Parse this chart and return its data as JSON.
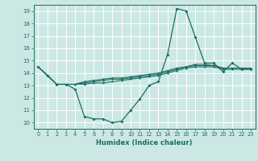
{
  "title": "",
  "xlabel": "Humidex (Indice chaleur)",
  "ylabel": "",
  "background_color": "#cce8e4",
  "grid_color": "#ffffff",
  "line_color": "#1a6e64",
  "xlim": [
    -0.5,
    23.5
  ],
  "ylim": [
    9.5,
    19.5
  ],
  "xticks": [
    0,
    1,
    2,
    3,
    4,
    5,
    6,
    7,
    8,
    9,
    10,
    11,
    12,
    13,
    14,
    15,
    16,
    17,
    18,
    19,
    20,
    21,
    22,
    23
  ],
  "yticks": [
    10,
    11,
    12,
    13,
    14,
    15,
    16,
    17,
    18,
    19
  ],
  "series": {
    "line1": [
      14.5,
      13.8,
      13.1,
      13.1,
      12.7,
      10.5,
      10.3,
      10.3,
      10.0,
      10.1,
      11.0,
      11.9,
      13.0,
      13.3,
      15.5,
      19.2,
      19.0,
      16.9,
      14.8,
      14.8,
      14.1,
      14.8,
      14.3,
      14.3
    ],
    "line2": [
      14.5,
      13.8,
      13.1,
      13.1,
      13.1,
      13.1,
      13.2,
      13.2,
      13.3,
      13.4,
      13.5,
      13.6,
      13.7,
      13.8,
      14.0,
      14.2,
      14.4,
      14.5,
      14.5,
      14.5,
      14.3,
      14.3,
      14.3,
      14.3
    ],
    "line3": [
      14.5,
      13.8,
      13.1,
      13.1,
      13.1,
      13.2,
      13.3,
      13.4,
      13.5,
      13.5,
      13.6,
      13.7,
      13.8,
      13.9,
      14.1,
      14.3,
      14.5,
      14.6,
      14.6,
      14.6,
      14.4,
      14.4,
      14.4,
      14.4
    ],
    "line4": [
      14.5,
      13.8,
      13.1,
      13.1,
      13.1,
      13.3,
      13.4,
      13.5,
      13.6,
      13.6,
      13.7,
      13.8,
      13.9,
      14.0,
      14.2,
      14.4,
      14.5,
      14.7,
      14.7,
      14.6,
      14.4,
      14.4,
      14.4,
      14.4
    ]
  }
}
